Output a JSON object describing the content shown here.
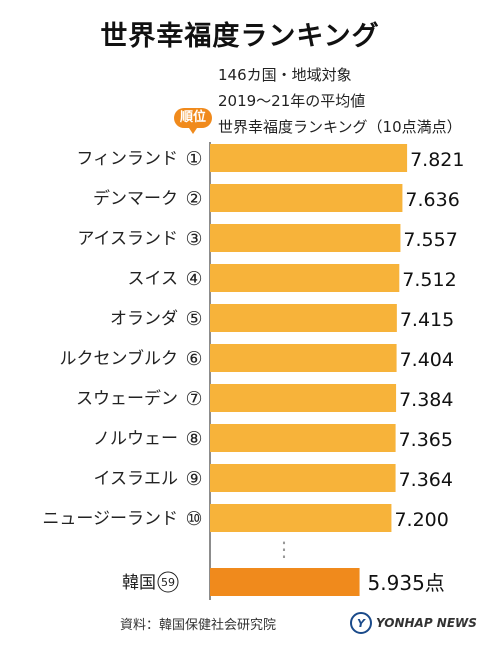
{
  "title": "世界幸福度ランキング",
  "subtitle_lines": [
    "146カ国・地域対象",
    "2019～21年の平均値",
    "世界幸福度ランキング（10点満点）"
  ],
  "rank_badge": "順位",
  "source": "資料：韓国保健社会研究院",
  "logo_text": "YONHAP NEWS",
  "colors": {
    "bar": "#f7b33a",
    "highlight": "#f08a1c",
    "axis": "#666666"
  },
  "chart_data": {
    "type": "bar",
    "orientation": "horizontal",
    "categories": [
      "フィンランド",
      "デンマーク",
      "アイスランド",
      "スイス",
      "オランダ",
      "ルクセンブルク",
      "スウェーデン",
      "ノルウェー",
      "イスラエル",
      "ニュージーランド",
      "韓国"
    ],
    "ranks": [
      "①",
      "②",
      "③",
      "④",
      "⑤",
      "⑥",
      "⑦",
      "⑧",
      "⑨",
      "⑩",
      "59"
    ],
    "values": [
      7.821,
      7.636,
      7.557,
      7.512,
      7.415,
      7.404,
      7.384,
      7.365,
      7.364,
      7.2,
      5.935
    ],
    "value_labels": [
      "7.821",
      "7.636",
      "7.557",
      "7.512",
      "7.415",
      "7.404",
      "7.384",
      "7.365",
      "7.364",
      "7.200",
      "5.935点"
    ],
    "highlight_index": 10,
    "gap_marker": "⋮"
  }
}
